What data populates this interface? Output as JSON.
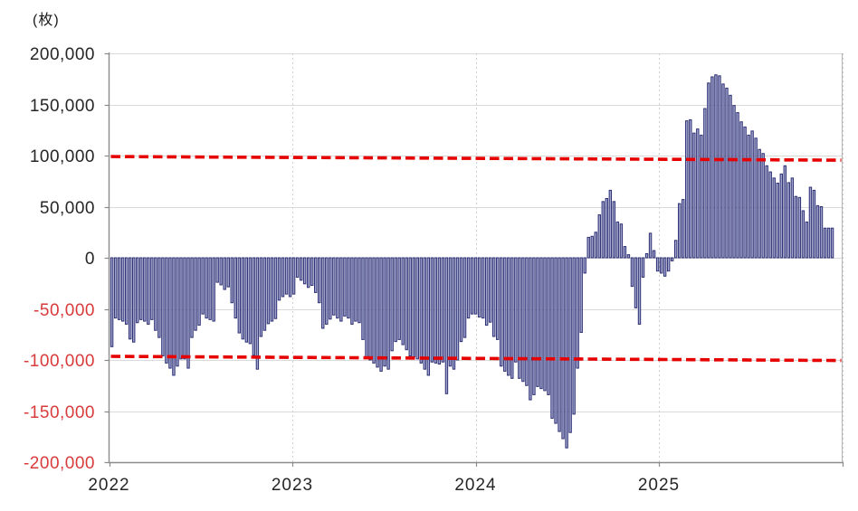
{
  "unit_label": "(枚)",
  "colors": {
    "bar_fill": "#a2a7cd",
    "bar_stroke": "#2d2f74",
    "reference_line": "#e60000",
    "negative_tick_label": "#d93a3a",
    "positive_tick_label": "#262626",
    "gridline": "#dadada",
    "axis": "#8c8c8c"
  },
  "chart_data": {
    "type": "bar",
    "title": "",
    "xlabel": "",
    "ylabel": "(枚)",
    "ylim": [
      -200000,
      200000
    ],
    "ytick_step": 50000,
    "grid": true,
    "legend": "none",
    "x_year_labels": [
      "2022",
      "2023",
      "2024",
      "2025"
    ],
    "y_ticks": [
      {
        "label": "200,000",
        "value": 200000
      },
      {
        "label": "150,000",
        "value": 150000
      },
      {
        "label": "100,000",
        "value": 100000
      },
      {
        "label": "50,000",
        "value": 50000
      },
      {
        "label": "0",
        "value": 0
      },
      {
        "label": "-50,000",
        "value": -50000
      },
      {
        "label": "-100,000",
        "value": -100000
      },
      {
        "label": "-150,000",
        "value": -150000
      },
      {
        "label": "-200,000",
        "value": -200000
      }
    ],
    "series_by_year": {
      "2022": [
        -87000,
        -59000,
        -60500,
        -62000,
        -65000,
        -79500,
        -82500,
        -63500,
        -60500,
        -62000,
        -65000,
        -60500,
        -71000,
        -78000,
        -96000,
        -103000,
        -108000,
        -115000,
        -106000,
        -99000,
        -99000,
        -108000,
        -78000,
        -71000,
        -66000,
        -55000,
        -59000,
        -60500,
        -62000,
        -24000,
        -26500,
        -31000,
        -28500,
        -44000,
        -59000,
        -73500,
        -79500,
        -82500,
        -84000,
        -95500,
        -109000,
        -77000,
        -71000,
        -64500,
        -62000,
        -59500,
        -41500,
        -38000,
        -35500,
        -38000
      ],
      "2023": [
        -35500,
        -19000,
        -22000,
        -25500,
        -29000,
        -27000,
        -34000,
        -44000,
        -69000,
        -65000,
        -60000,
        -56000,
        -59000,
        -62000,
        -57000,
        -59000,
        -65000,
        -62000,
        -63500,
        -80000,
        -97000,
        -100000,
        -103000,
        -107000,
        -111000,
        -106000,
        -109000,
        -91000,
        -82000,
        -80000,
        -85000,
        -90000,
        -96000,
        -97000,
        -99000,
        -103000,
        -109000,
        -115000,
        -102000,
        -103000,
        -104000,
        -102000,
        -133000,
        -106000,
        -109000,
        -100000,
        -82000,
        -78000,
        -59000,
        -55000
      ],
      "2024": [
        -55000,
        -58000,
        -59000,
        -66000,
        -63000,
        -77000,
        -80000,
        -106000,
        -111000,
        -115000,
        -118000,
        -102000,
        -118000,
        -121000,
        -125000,
        -139000,
        -134000,
        -126000,
        -128000,
        -130000,
        -134000,
        -157000,
        -162000,
        -170000,
        -177000,
        -186000,
        -171000,
        -153000,
        -108000,
        -73000,
        -15000,
        20000,
        21000,
        25000,
        42000,
        55000,
        58000,
        66000,
        55000,
        35000,
        33000,
        11000,
        3000,
        -28000,
        -49000,
        -65000,
        -19000,
        4000,
        24000,
        7000,
        -13000
      ],
      "2025": [
        -15000,
        -18000,
        -13000,
        -3000,
        17000,
        53000,
        57000,
        134000,
        135000,
        122000,
        126000,
        120000,
        146000,
        171000,
        177000,
        179000,
        178000,
        170000,
        166000,
        159000,
        149000,
        142000,
        133000,
        128000,
        120000,
        124000,
        117000,
        106000,
        102000,
        90000,
        84000,
        78000,
        73000,
        82000,
        90000,
        73500,
        78000,
        60000,
        59000,
        46000,
        35000,
        69000,
        66000,
        51000,
        50000,
        29000,
        29000,
        29000
      ]
    },
    "reference_lines": [
      {
        "name": "upper-threshold",
        "start_value": 99000,
        "end_value": 95500
      },
      {
        "name": "lower-threshold",
        "start_value": -96500,
        "end_value": -100500
      }
    ]
  }
}
